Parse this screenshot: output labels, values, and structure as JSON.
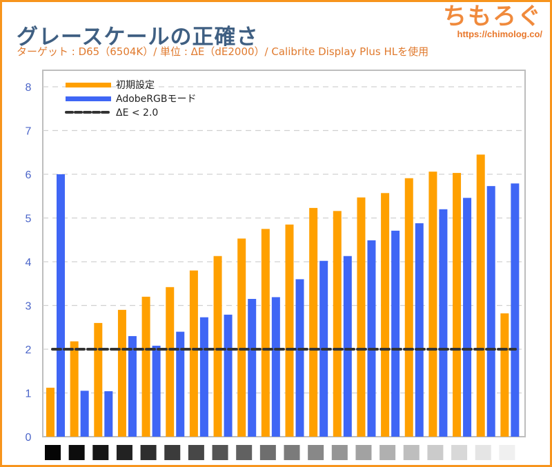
{
  "header": {
    "title": "グレースケールの正確さ",
    "subtitle": "ターゲット : D65（6504K）/ 単位 : ΔE（dE2000）/ Calibrite Display Plus HLを使用"
  },
  "watermark": {
    "logo": "ちもろぐ",
    "url": "https://chimolog.co/"
  },
  "colors": {
    "border": "#f7941d",
    "series_default": "#ffa000",
    "series_adobe": "#3f66f5",
    "threshold": "#333333",
    "axis_label": "#4a64c8"
  },
  "chart_data": {
    "type": "bar",
    "title": "グレースケールの正確さ",
    "subtitle": "ターゲット : D65（6504K）/ 単位 : ΔE（dE2000）/ Calibrite Display Plus HLを使用",
    "xlabel": "",
    "ylabel": "",
    "ylim": [
      0,
      8
    ],
    "yticks": [
      0,
      1,
      2,
      3,
      4,
      5,
      6,
      7,
      8
    ],
    "grid": true,
    "legend_position": "top-left",
    "categories": [
      "0%",
      "5%",
      "10%",
      "15%",
      "20%",
      "25%",
      "30%",
      "35%",
      "40%",
      "45%",
      "50%",
      "55%",
      "60%",
      "65%",
      "70%",
      "75%",
      "80%",
      "85%",
      "90%",
      "95%"
    ],
    "category_swatches": [
      "#050505",
      "#0d0d0d",
      "#161616",
      "#222222",
      "#2e2e2e",
      "#3b3b3b",
      "#474747",
      "#545454",
      "#616161",
      "#6e6e6e",
      "#7b7b7b",
      "#888888",
      "#959595",
      "#a2a2a2",
      "#b0b0b0",
      "#bebebe",
      "#cbcbcb",
      "#d8d8d8",
      "#e5e5e5",
      "#f0f0f0"
    ],
    "series": [
      {
        "name": "初期設定",
        "color": "#ffa000",
        "values": [
          1.12,
          2.18,
          2.6,
          2.9,
          3.2,
          3.42,
          3.8,
          4.13,
          4.53,
          4.75,
          4.85,
          5.23,
          5.16,
          5.47,
          5.57,
          5.91,
          6.06,
          6.03,
          6.45,
          2.82
        ]
      },
      {
        "name": "AdobeRGBモード",
        "color": "#3f66f5",
        "values": [
          6.0,
          1.05,
          1.04,
          2.3,
          2.08,
          2.4,
          2.73,
          2.79,
          3.15,
          3.19,
          3.6,
          4.02,
          4.13,
          4.49,
          4.71,
          4.88,
          5.2,
          5.46,
          5.73,
          5.79
        ]
      }
    ],
    "threshold": {
      "label": "ΔE < 2.0",
      "value": 2.0
    }
  }
}
